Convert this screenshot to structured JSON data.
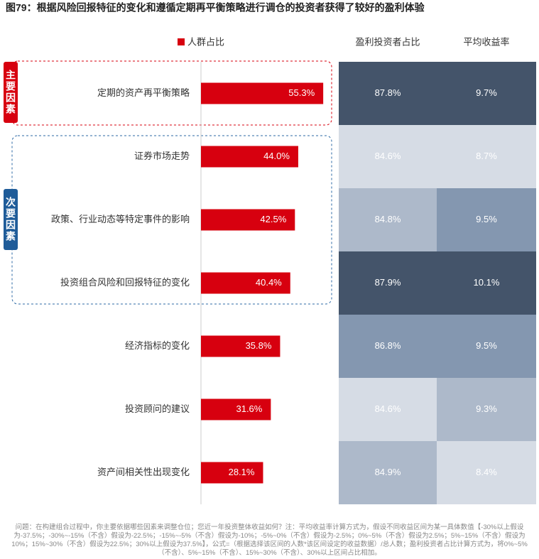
{
  "chart_data": {
    "type": "bar",
    "title": "图79：根据风险回报特征的变化和遵循定期再平衡策略进行调仓的投资者获得了较好的盈利体验",
    "categories": [
      "定期的资产再平衡策略",
      "证券市场走势",
      "政策、行业动态等特定事件的影响",
      "投资组合风险和回报特征的变化",
      "经济指标的变化",
      "投资顾问的建议",
      "资产间相关性出现变化"
    ],
    "series": [
      {
        "name": "人群占比",
        "color": "#d7000f",
        "values": [
          55.3,
          44.0,
          42.5,
          40.4,
          35.8,
          31.6,
          28.1
        ],
        "value_labels": [
          "55.3%",
          "44.0%",
          "42.5%",
          "40.4%",
          "35.8%",
          "31.6%",
          "28.1%"
        ]
      }
    ],
    "xlim": [
      0,
      62
    ],
    "groups": [
      "主要因素",
      "次要因素"
    ],
    "table": {
      "columns": [
        {
          "name": "盈利投资者占比",
          "values": [
            87.8,
            84.6,
            84.8,
            87.9,
            86.8,
            84.6,
            84.9
          ],
          "value_labels": [
            "87.8%",
            "84.6%",
            "84.8%",
            "87.9%",
            "86.8%",
            "84.6%",
            "84.9%"
          ],
          "colors": [
            "#44546a",
            "#d6dce5",
            "#adb9ca",
            "#44546a",
            "#8497b0",
            "#d6dce5",
            "#adb9ca"
          ]
        },
        {
          "name": "平均收益率",
          "values": [
            9.7,
            8.7,
            9.5,
            10.1,
            9.5,
            9.3,
            8.4
          ],
          "value_labels": [
            "9.7%",
            "8.7%",
            "9.5%",
            "10.1%",
            "9.5%",
            "9.3%",
            "8.4%"
          ],
          "colors": [
            "#44546a",
            "#d6dce5",
            "#8497b0",
            "#44546a",
            "#8497b0",
            "#adb9ca",
            "#d6dce5"
          ]
        }
      ]
    },
    "note": "问题：在构建组合过程中，你主要依据哪些因素来调整仓位；您近一年投资整体收益如何？注：平均收益率计算方式为，假设不同收益区间为某一具体数值【-30%以上假设为-37.5%；-30%~-15%（不含）假设为-22.5%；-15%~-5%（不含）假设为-10%；-5%~0%（不含）假设为-2.5%；0%~5%（不含）假设为2.5%；5%~15%（不含）假设为10%；15%~30%（不含）假设为22.5%；30%以上假设为37.5%】，公式=（根据选择该区间的人数*该区间设定的收益数据）/总人数；盈利投资者占比计算方式为，将0%~5%（不含）、5%~15%（不含）、15%~30%（不含）、30%以上区间占比相加。"
  }
}
